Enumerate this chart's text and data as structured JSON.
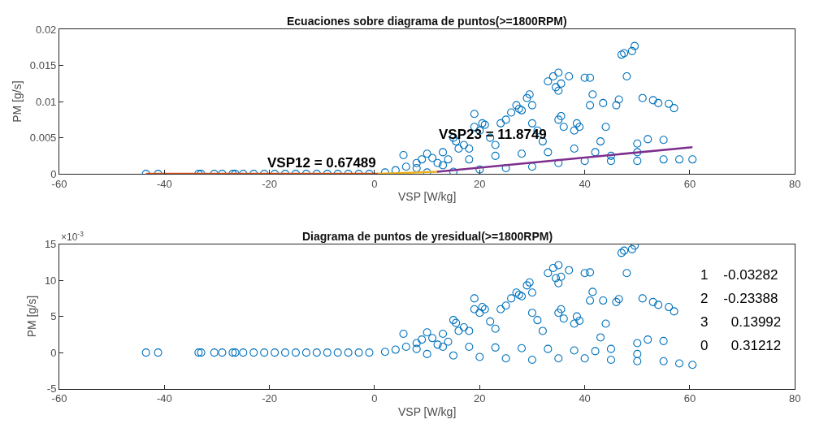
{
  "chart_data": [
    {
      "type": "scatter",
      "title": "Ecuaciones sobre diagrama de puntos(>=1800RPM)",
      "xlabel": "VSP [W/kg]",
      "ylabel": "PM [g/s]",
      "xlim": [
        -60,
        80
      ],
      "xticks": [
        -60,
        -40,
        -20,
        0,
        20,
        40,
        60,
        80
      ],
      "ylim": [
        0,
        0.02
      ],
      "yticks": [
        0,
        0.005,
        0.01,
        0.015,
        0.02
      ],
      "marker": "circle",
      "series": [
        {
          "color": "#0072bd",
          "x": [
            -43.5,
            -41.2,
            -33.5,
            -33,
            -30.5,
            -29,
            -27,
            -26.5,
            -25,
            -23,
            -21,
            -19,
            -17,
            -15,
            -13,
            -11,
            -9,
            -7,
            -5,
            -3,
            -1,
            2,
            4,
            5.5,
            6,
            8,
            9,
            10,
            11,
            12,
            13,
            14,
            15,
            15.5,
            16,
            17,
            18,
            19,
            19,
            20,
            20.5,
            21,
            22,
            23,
            24,
            25,
            26,
            27,
            27.5,
            28,
            29,
            29.5,
            30,
            30,
            31,
            32,
            33,
            34,
            34.5,
            35,
            35.5,
            35,
            35.5,
            35,
            36,
            37,
            38,
            38.5,
            39,
            40,
            41,
            41,
            41.5,
            43,
            43.5,
            44,
            46,
            46.5,
            47,
            47.5,
            48,
            49,
            49.5,
            50,
            51,
            52,
            53,
            54,
            55,
            56,
            57,
            58,
            60.5,
            55,
            50,
            45,
            40,
            35,
            30,
            25,
            20,
            15,
            10,
            42,
            38,
            33,
            28,
            23,
            18,
            13,
            8,
            45,
            50
          ],
          "values": [
            0,
            0,
            0,
            0,
            0,
            0,
            0,
            0,
            0,
            0,
            0,
            0,
            0,
            0,
            0,
            0,
            0,
            0,
            0,
            0,
            0,
            0.0002,
            0.0005,
            0.0026,
            0.001,
            0.0015,
            0.002,
            0.0028,
            0.0022,
            0.0015,
            0.003,
            0.002,
            0.005,
            0.0045,
            0.0035,
            0.004,
            0.0035,
            0.0083,
            0.0065,
            0.006,
            0.007,
            0.0068,
            0.005,
            0.004,
            0.007,
            0.0075,
            0.0085,
            0.0095,
            0.009,
            0.0088,
            0.0105,
            0.011,
            0.0095,
            0.007,
            0.006,
            0.0045,
            0.0128,
            0.0135,
            0.012,
            0.014,
            0.0125,
            0.0115,
            0.008,
            0.0075,
            0.0065,
            0.0135,
            0.006,
            0.007,
            0.0065,
            0.0133,
            0.0133,
            0.0095,
            0.011,
            0.0045,
            0.0098,
            0.0065,
            0.0095,
            0.0103,
            0.0165,
            0.0167,
            0.0135,
            0.017,
            0.0177,
            0.0042,
            0.0105,
            0.0048,
            0.0102,
            0.0098,
            0.0047,
            0.0097,
            0.0091,
            0.002,
            0.002,
            0.002,
            0.0018,
            0.0018,
            0.0018,
            0.0015,
            0.001,
            0.0008,
            0.0006,
            0.0003,
            0.0002,
            0.003,
            0.0035,
            0.003,
            0.0028,
            0.0025,
            0.002,
            0.0012,
            0.0008,
            0.0025,
            0.003
          ]
        },
        {
          "type": "line",
          "marker": "none",
          "color": "#d95319",
          "x": [
            -43.5,
            0.67489
          ],
          "values": [
            0,
            0
          ]
        },
        {
          "type": "line",
          "marker": "none",
          "color": "#edb120",
          "x": [
            0.67489,
            11.8749
          ],
          "values": [
            0,
            0.0003
          ]
        },
        {
          "type": "line",
          "marker": "none",
          "color": "#7e2f8e",
          "x": [
            11.8749,
            60.5
          ],
          "values": [
            0.0003,
            0.0037
          ]
        }
      ],
      "annotations": [
        {
          "text": "VSP12 = 0.67489",
          "x": 0.67489,
          "y": 0
        },
        {
          "text": "VSP23 = 11.8749",
          "x": 11.8749,
          "y": 0.0003
        }
      ]
    },
    {
      "type": "scatter",
      "title": "Diagrama de puntos de yresidual(>=1800RPM)",
      "xlabel": "VSP [W/kg]",
      "ylabel": "PM [g/s]",
      "xlim": [
        -60,
        80
      ],
      "xticks": [
        -60,
        -40,
        -20,
        0,
        20,
        40,
        60,
        80
      ],
      "ylim": [
        -5,
        15
      ],
      "yticks": [
        -5,
        0,
        5,
        10,
        15
      ],
      "marker": "circle",
      "series": [
        {
          "color": "#0072bd",
          "x": [
            -43.5,
            -41.2,
            -33.5,
            -33,
            -30.5,
            -29,
            -27,
            -26.5,
            -25,
            -23,
            -21,
            -19,
            -17,
            -15,
            -13,
            -11,
            -9,
            -7,
            -5,
            -3,
            -1,
            2,
            4,
            5.5,
            6,
            8,
            9,
            10,
            11,
            12,
            13,
            14,
            15,
            15.5,
            16,
            17,
            18,
            19,
            19,
            20,
            20.5,
            21,
            22,
            23,
            24,
            25,
            26,
            27,
            27.5,
            28,
            29,
            29.5,
            30,
            30,
            31,
            32,
            33,
            34,
            34.5,
            35,
            35.5,
            35,
            35.5,
            35,
            36,
            37,
            38,
            38.5,
            39,
            40,
            41,
            41,
            41.5,
            43,
            43.5,
            44,
            46,
            46.5,
            47,
            47.5,
            48,
            49,
            49.5,
            50,
            51,
            52,
            53,
            54,
            55,
            56,
            57,
            58,
            60.5,
            55,
            50,
            45,
            40,
            35,
            30,
            25,
            20,
            15,
            10,
            42,
            38,
            33,
            28,
            23,
            18,
            13,
            8,
            45,
            50
          ],
          "values": [
            0,
            0,
            0,
            0,
            0,
            0,
            0,
            0,
            0,
            0,
            0,
            0,
            0,
            0,
            0,
            0,
            0,
            0,
            0,
            0,
            0,
            0.1,
            0.4,
            2.6,
            0.8,
            1.3,
            1.8,
            2.8,
            2,
            1.1,
            2.6,
            1.5,
            4.5,
            4.1,
            3,
            3.5,
            3,
            7.5,
            6,
            5.5,
            6.3,
            6,
            4.3,
            3.3,
            6,
            6.5,
            7.5,
            8.3,
            8,
            7.8,
            9.3,
            9.7,
            8.3,
            5.5,
            4.5,
            3,
            11,
            11.7,
            10.3,
            12.1,
            10.5,
            9.6,
            6,
            5.5,
            4.7,
            11.4,
            4,
            5,
            4.4,
            11,
            11.1,
            7.2,
            8.4,
            2.1,
            7.2,
            4,
            7,
            7.4,
            13.8,
            14.1,
            11,
            14.3,
            14.8,
            1.3,
            7.5,
            1.8,
            7,
            6.6,
            1.6,
            6.3,
            5.7,
            -1.5,
            -1.7,
            -1.2,
            -1.2,
            -1,
            -0.8,
            -0.8,
            -1,
            -0.8,
            -0.6,
            -0.4,
            -0.2,
            0.2,
            0.3,
            0.5,
            0.6,
            0.7,
            0.8,
            0.8,
            0.5,
            0.5,
            -0.2
          ]
        }
      ],
      "annotations": [
        "×10$^{-3}$",
        "1    -0.03282",
        "2    -0.23388",
        "3      0.13992",
        "0      0.31212"
      ]
    }
  ]
}
